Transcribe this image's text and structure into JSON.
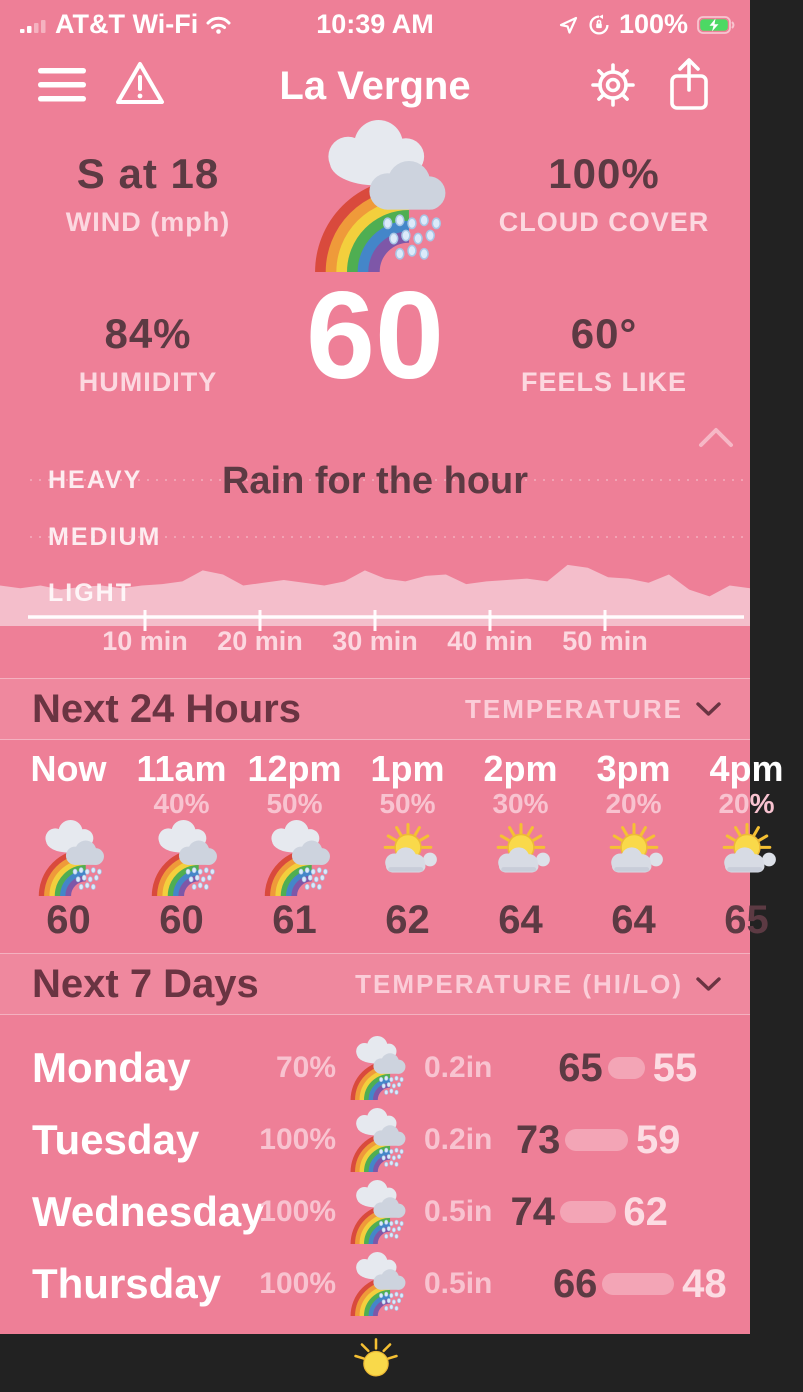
{
  "colors": {
    "background": "#ee7f97",
    "dark_text": "#5c3a43",
    "section_title": "#6a3442",
    "light_text": "#fcd8e0",
    "pct_text": "#f8c3d0",
    "chart_fill": "#f4becb",
    "battery_green": "#4cd964"
  },
  "status_bar": {
    "carrier": "AT&T Wi-Fi",
    "time": "10:39 AM",
    "battery": "100%",
    "icons": [
      "cellular-signal",
      "wifi",
      "location-arrow",
      "rotation-lock",
      "battery-charging"
    ]
  },
  "header": {
    "title": "La Vergne",
    "icons": [
      "menu",
      "alert-triangle",
      "settings-gear",
      "share"
    ]
  },
  "current": {
    "wind_value": "S at 18",
    "wind_label": "WIND (mph)",
    "cloud_value": "100%",
    "cloud_label": "CLOUD COVER",
    "humidity_value": "84%",
    "humidity_label": "HUMIDITY",
    "temperature": "60",
    "feels_value": "60°",
    "feels_label": "FEELS LIKE",
    "icon": "rainbow-rain"
  },
  "chart_data": {
    "type": "area",
    "title": "Rain for the hour",
    "series_name": "rain intensity",
    "y_labels": [
      "HEAVY",
      "MEDIUM",
      "LIGHT"
    ],
    "x_ticks": [
      "10 min",
      "20 min",
      "30 min",
      "40 min",
      "50 min"
    ],
    "x_range_minutes": [
      0,
      60
    ],
    "grid": "dashed horizontal at HEAVY and MEDIUM",
    "values_scale": "fraction of axis height, LIGHT=0.175, MEDIUM=0.584, HEAVY=1.0",
    "values": [
      0.23,
      0.21,
      0.23,
      0.2,
      0.22,
      0.23,
      0.21,
      0.23,
      0.24,
      0.26,
      0.34,
      0.31,
      0.23,
      0.25,
      0.27,
      0.25,
      0.23,
      0.26,
      0.34,
      0.28,
      0.26,
      0.3,
      0.31,
      0.24,
      0.26,
      0.27,
      0.28,
      0.26,
      0.38,
      0.36,
      0.29,
      0.28,
      0.25,
      0.31,
      0.2,
      0.15,
      0.23,
      0.21
    ]
  },
  "hourly": {
    "section_title": "Next 24 Hours",
    "mode_label": "TEMPERATURE",
    "items": [
      {
        "time": "Now",
        "pct": "",
        "icon": "rainbow-rain",
        "temp": "60"
      },
      {
        "time": "11am",
        "pct": "40%",
        "icon": "rainbow-rain",
        "temp": "60"
      },
      {
        "time": "12pm",
        "pct": "50%",
        "icon": "rainbow-rain",
        "temp": "61"
      },
      {
        "time": "1pm",
        "pct": "50%",
        "icon": "sun-cloud",
        "temp": "62"
      },
      {
        "time": "2pm",
        "pct": "30%",
        "icon": "sun-cloud",
        "temp": "64"
      },
      {
        "time": "3pm",
        "pct": "20%",
        "icon": "sun-cloud",
        "temp": "64"
      },
      {
        "time": "4pm",
        "pct": "20%",
        "icon": "sun-cloud",
        "temp": "65"
      }
    ]
  },
  "daily": {
    "section_title": "Next 7 Days",
    "mode_label": "TEMPERATURE (HI/LO)",
    "items": [
      {
        "day": "Monday",
        "pct": "70%",
        "icon": "rainbow-rain",
        "precip": "0.2in",
        "hi": 65,
        "lo": 55
      },
      {
        "day": "Tuesday",
        "pct": "100%",
        "icon": "rainbow-rain",
        "precip": "0.2in",
        "hi": 73,
        "lo": 59
      },
      {
        "day": "Wednesday",
        "pct": "100%",
        "icon": "rainbow-rain",
        "precip": "0.5in",
        "hi": 74,
        "lo": 62
      },
      {
        "day": "Thursday",
        "pct": "100%",
        "icon": "rainbow-rain",
        "precip": "0.5in",
        "hi": 66,
        "lo": 48
      },
      {
        "day": "",
        "pct": "",
        "icon": "sun",
        "precip": "",
        "hi": null,
        "lo": null
      }
    ]
  }
}
